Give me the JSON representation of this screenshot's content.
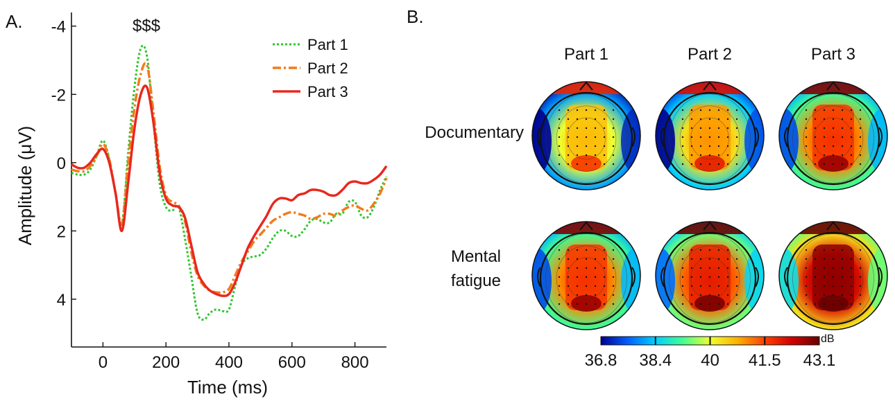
{
  "panel_a": {
    "label": "A.",
    "annotation": "$$$",
    "xlabel": "Time (ms)",
    "ylabel": "Amplitude (μV)"
  },
  "panel_b": {
    "label": "B.",
    "columns": [
      "Part 1",
      "Part 2",
      "Part 3"
    ],
    "rows": [
      "Documentary",
      "Mental fatigue"
    ],
    "row_label_lines": [
      [
        "Documentary"
      ],
      [
        "Mental",
        "fatigue"
      ]
    ],
    "topo_intensity": [
      [
        0.55,
        0.6,
        0.72
      ],
      [
        0.72,
        0.76,
        0.9
      ]
    ],
    "colorbar": {
      "unit": "dB",
      "ticks": [
        "36.8",
        "38.4",
        "40",
        "41.5",
        "43.1"
      ],
      "colors": [
        "#00008f",
        "#0060ff",
        "#00d0ff",
        "#40ff90",
        "#f0ff30",
        "#ffb000",
        "#ff4000",
        "#d00000",
        "#6a0000"
      ]
    }
  },
  "chart_data": {
    "type": "line",
    "xlabel": "Time (ms)",
    "ylabel": "Amplitude (μV)",
    "xlim": [
      -100,
      900
    ],
    "ylim": [
      5.4,
      -4.4
    ],
    "y_inverted": true,
    "xticks": [
      0,
      200,
      400,
      600,
      800
    ],
    "yticks": [
      -4,
      -2,
      0,
      2,
      4
    ],
    "legend_position": "top-right",
    "series": [
      {
        "name": "Part 1",
        "color": "#2cc62c",
        "style": "dotted",
        "x": [
          -100,
          -80,
          -60,
          -40,
          -20,
          0,
          20,
          40,
          60,
          80,
          100,
          120,
          140,
          160,
          180,
          200,
          220,
          240,
          260,
          280,
          300,
          320,
          340,
          360,
          380,
          400,
          420,
          440,
          460,
          480,
          500,
          520,
          540,
          560,
          580,
          600,
          620,
          640,
          660,
          680,
          700,
          720,
          740,
          760,
          780,
          800,
          820,
          840,
          860,
          880,
          900
        ],
        "y": [
          0.3,
          0.35,
          0.35,
          0.2,
          -0.2,
          -0.65,
          -0.1,
          0.9,
          1.8,
          -0.3,
          -2.2,
          -3.35,
          -3.1,
          -1.2,
          0.6,
          1.3,
          1.4,
          1.3,
          2.2,
          3.3,
          4.4,
          4.6,
          4.4,
          4.3,
          4.35,
          4.3,
          3.6,
          3.0,
          2.8,
          2.75,
          2.7,
          2.5,
          2.2,
          2.0,
          2.0,
          2.15,
          2.15,
          1.95,
          1.7,
          1.65,
          1.75,
          1.75,
          1.5,
          1.5,
          1.15,
          1.15,
          1.55,
          1.6,
          1.3,
          0.8,
          0.4
        ]
      },
      {
        "name": "Part 2",
        "color": "#f07c1c",
        "style": "dashdot",
        "x": [
          -100,
          -80,
          -60,
          -40,
          -20,
          0,
          20,
          40,
          60,
          80,
          100,
          120,
          140,
          160,
          180,
          200,
          220,
          240,
          260,
          280,
          300,
          320,
          340,
          360,
          380,
          400,
          420,
          440,
          460,
          480,
          500,
          520,
          540,
          560,
          580,
          600,
          620,
          640,
          660,
          680,
          700,
          720,
          740,
          760,
          780,
          800,
          820,
          840,
          860,
          880,
          900
        ],
        "y": [
          0.2,
          0.25,
          0.25,
          0.1,
          -0.2,
          -0.55,
          -0.1,
          0.9,
          1.8,
          0.0,
          -1.6,
          -2.6,
          -2.85,
          -1.5,
          0.1,
          0.95,
          1.15,
          1.25,
          1.7,
          2.6,
          3.3,
          3.6,
          3.75,
          3.8,
          3.8,
          3.7,
          3.3,
          2.9,
          2.6,
          2.3,
          2.1,
          1.9,
          1.7,
          1.6,
          1.5,
          1.45,
          1.5,
          1.55,
          1.65,
          1.6,
          1.5,
          1.5,
          1.55,
          1.4,
          1.3,
          1.25,
          1.35,
          1.4,
          1.2,
          0.9,
          0.45
        ]
      },
      {
        "name": "Part 3",
        "color": "#e8281e",
        "style": "solid",
        "x": [
          -100,
          -80,
          -60,
          -40,
          -20,
          0,
          20,
          40,
          60,
          80,
          100,
          120,
          140,
          160,
          180,
          200,
          220,
          240,
          260,
          280,
          300,
          320,
          340,
          360,
          380,
          400,
          420,
          440,
          460,
          480,
          500,
          520,
          540,
          560,
          580,
          600,
          620,
          640,
          660,
          680,
          700,
          720,
          740,
          760,
          780,
          800,
          820,
          840,
          860,
          880,
          900
        ],
        "y": [
          0.05,
          0.15,
          0.15,
          0.0,
          -0.25,
          -0.4,
          0.0,
          0.9,
          2.0,
          0.6,
          -1.0,
          -2.0,
          -2.2,
          -1.2,
          0.3,
          1.05,
          1.25,
          1.3,
          1.6,
          2.4,
          3.2,
          3.55,
          3.75,
          3.85,
          3.9,
          3.85,
          3.5,
          3.0,
          2.5,
          2.15,
          1.85,
          1.55,
          1.2,
          1.05,
          1.05,
          1.1,
          0.95,
          0.9,
          0.8,
          0.8,
          0.85,
          0.95,
          0.95,
          0.8,
          0.6,
          0.55,
          0.6,
          0.6,
          0.5,
          0.35,
          0.1
        ]
      }
    ]
  }
}
